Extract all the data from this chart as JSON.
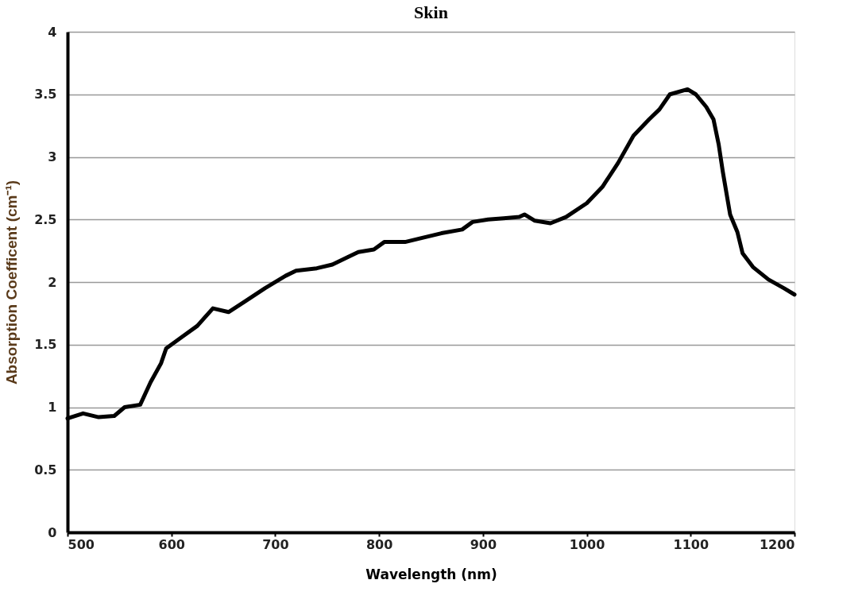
{
  "chart_data": {
    "type": "line",
    "title": "Skin",
    "xlabel": "Wavelength (nm)",
    "ylabel": "Absorption Coefficent (cm⁻¹)",
    "x": [
      500,
      515,
      530,
      545,
      555,
      570,
      580,
      590,
      595,
      610,
      625,
      640,
      655,
      670,
      690,
      710,
      720,
      740,
      755,
      770,
      780,
      795,
      805,
      825,
      840,
      860,
      880,
      890,
      905,
      920,
      935,
      940,
      950,
      965,
      980,
      1000,
      1015,
      1030,
      1045,
      1060,
      1070,
      1080,
      1097,
      1105,
      1115,
      1122,
      1127,
      1131,
      1138,
      1145,
      1150,
      1160,
      1175,
      1190,
      1200
    ],
    "series": [
      {
        "color": "#000000",
        "values": [
          0.91,
          0.95,
          0.92,
          0.93,
          1.0,
          1.02,
          1.2,
          1.35,
          1.47,
          1.56,
          1.65,
          1.79,
          1.76,
          1.84,
          1.95,
          2.05,
          2.09,
          2.11,
          2.14,
          2.2,
          2.24,
          2.26,
          2.32,
          2.32,
          2.35,
          2.39,
          2.42,
          2.48,
          2.5,
          2.51,
          2.52,
          2.54,
          2.49,
          2.47,
          2.52,
          2.63,
          2.76,
          2.95,
          3.17,
          3.3,
          3.38,
          3.5,
          3.54,
          3.5,
          3.4,
          3.3,
          3.1,
          2.88,
          2.54,
          2.4,
          2.23,
          2.12,
          2.02,
          1.95,
          1.9
        ]
      }
    ],
    "xlim": [
      500,
      1200
    ],
    "xticks": [
      500,
      600,
      700,
      800,
      900,
      1000,
      1100,
      1200
    ],
    "ylim": [
      0,
      4
    ],
    "yticks": [
      0,
      0.5,
      1,
      1.5,
      2,
      2.5,
      3,
      3.5,
      4
    ],
    "grid": "y",
    "marker": "none",
    "line_style": "solid"
  }
}
